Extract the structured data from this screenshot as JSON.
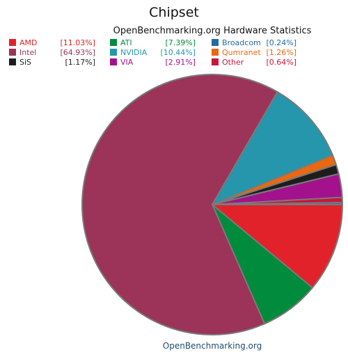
{
  "chart_data": {
    "type": "pie",
    "title": "Chipset",
    "subtitle": "OpenBenchmarking.org Hardware Statistics",
    "footer": "OpenBenchmarking.org",
    "legend_position": "top",
    "slices": [
      {
        "name": "AMD",
        "value": 11.03,
        "label": "[11.03%]",
        "color": "#e1222b"
      },
      {
        "name": "ATI",
        "value": 7.39,
        "label": "[7.39%]",
        "color": "#008c3c"
      },
      {
        "name": "Broadcom",
        "value": 0.24,
        "label": "[0.24%]",
        "color": "#236aa6"
      },
      {
        "name": "Intel",
        "value": 64.93,
        "label": "[64.93%]",
        "color": "#9b3458"
      },
      {
        "name": "NVIDIA",
        "value": 10.44,
        "label": "[10.44%]",
        "color": "#2596ab"
      },
      {
        "name": "Qumranet",
        "value": 1.26,
        "label": "[1.26%]",
        "color": "#e96811"
      },
      {
        "name": "SiS",
        "value": 1.17,
        "label": "[1.17%]",
        "color": "#1d1d1d"
      },
      {
        "name": "VIA",
        "value": 2.91,
        "label": "[2.91%]",
        "color": "#a4118c"
      },
      {
        "name": "Other",
        "value": 0.64,
        "label": "[0.64%]",
        "color": "#c8163c"
      }
    ]
  }
}
